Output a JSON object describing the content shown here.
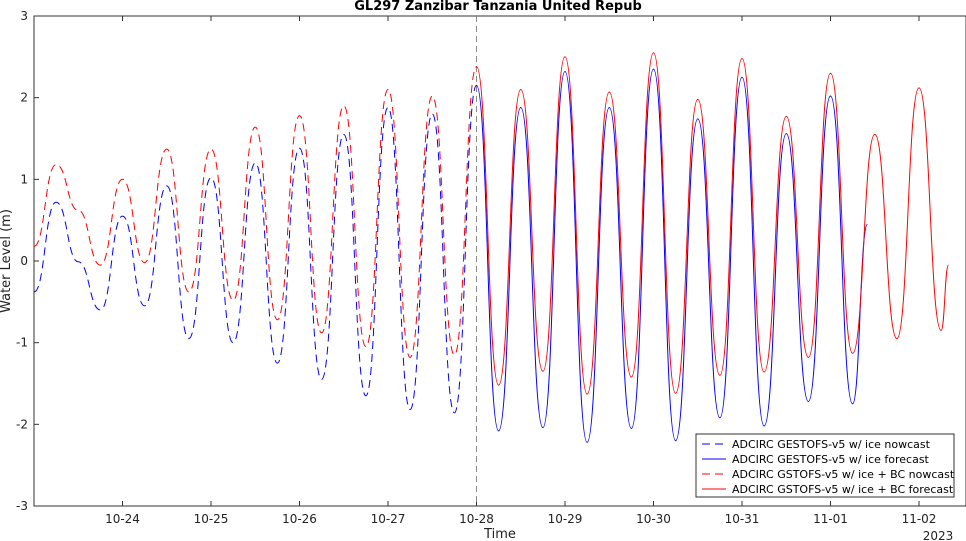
{
  "chart_data": {
    "type": "line",
    "title": "GL297 Zanzibar Tanzania United Repub",
    "xlabel": "Time",
    "ylabel": "Water Level (m)",
    "x_ticks": [
      "10-24",
      "10-25",
      "10-26",
      "10-27",
      "10-28",
      "10-29",
      "10-30",
      "10-31",
      "11-01",
      "11-02"
    ],
    "year_label": "2023",
    "y_ticks": [
      "-3",
      "-2",
      "-1",
      "0",
      "1",
      "2",
      "3"
    ],
    "ylim": [
      -3,
      3
    ],
    "xlim_days": [
      "10-23 00:00",
      "11-02 08:00"
    ],
    "nowcast_forecast_divider": "10-28",
    "grid": false,
    "legend_position": "bottom-right",
    "colors": {
      "ice": "#0000ff",
      "bc": "#ff0000",
      "divider": "#888888"
    },
    "series": [
      {
        "name": "ADCIRC GESTOFS-v5 w/ ice nowcast",
        "color": "#0000ff",
        "style": "dashed",
        "points": [
          [
            "10-23 00:00",
            -0.38
          ],
          [
            "10-23 06:00",
            0.72
          ],
          [
            "10-23 12:00",
            -0.01
          ],
          [
            "10-23 18:00",
            -0.6
          ],
          [
            "10-24 00:00",
            0.55
          ],
          [
            "10-24 06:00",
            -0.55
          ],
          [
            "10-24 12:00",
            0.92
          ],
          [
            "10-24 18:00",
            -0.95
          ],
          [
            "10-25 00:00",
            1.02
          ],
          [
            "10-25 06:00",
            -1.0
          ],
          [
            "10-25 12:00",
            1.2
          ],
          [
            "10-25 18:00",
            -1.25
          ],
          [
            "10-26 00:00",
            1.38
          ],
          [
            "10-26 06:00",
            -1.45
          ],
          [
            "10-26 12:00",
            1.55
          ],
          [
            "10-26 18:00",
            -1.65
          ],
          [
            "10-27 00:00",
            1.88
          ],
          [
            "10-27 06:00",
            -1.82
          ],
          [
            "10-27 12:00",
            1.8
          ],
          [
            "10-27 18:00",
            -1.86
          ],
          [
            "10-28 00:00",
            2.15
          ]
        ]
      },
      {
        "name": "ADCIRC GESTOFS-v5 w/ ice forecast",
        "color": "#0000ff",
        "style": "solid",
        "points": [
          [
            "10-28 00:00",
            2.15
          ],
          [
            "10-28 06:00",
            -2.08
          ],
          [
            "10-28 12:00",
            1.88
          ],
          [
            "10-28 18:00",
            -2.04
          ],
          [
            "10-29 00:00",
            2.32
          ],
          [
            "10-29 06:00",
            -2.22
          ],
          [
            "10-29 12:00",
            1.88
          ],
          [
            "10-29 18:00",
            -2.05
          ],
          [
            "10-30 00:00",
            2.35
          ],
          [
            "10-30 06:00",
            -2.2
          ],
          [
            "10-30 12:00",
            1.74
          ],
          [
            "10-30 18:00",
            -1.92
          ],
          [
            "10-31 00:00",
            2.25
          ],
          [
            "10-31 06:00",
            -2.02
          ],
          [
            "10-31 12:00",
            1.56
          ],
          [
            "10-31 18:00",
            -1.72
          ],
          [
            "11-01 00:00",
            2.02
          ],
          [
            "11-01 06:00",
            -1.75
          ],
          [
            "11-01 10:00",
            0.45
          ]
        ]
      },
      {
        "name": "ADCIRC GSTOFS-v5 w/ ice + BC nowcast",
        "color": "#ff0000",
        "style": "dashed",
        "points": [
          [
            "10-23 00:00",
            0.18
          ],
          [
            "10-23 06:00",
            1.18
          ],
          [
            "10-23 12:00",
            0.62
          ],
          [
            "10-23 18:00",
            -0.05
          ],
          [
            "10-24 00:00",
            1.0
          ],
          [
            "10-24 06:00",
            -0.02
          ],
          [
            "10-24 12:00",
            1.37
          ],
          [
            "10-24 18:00",
            -0.38
          ],
          [
            "10-25 00:00",
            1.37
          ],
          [
            "10-25 06:00",
            -0.48
          ],
          [
            "10-25 12:00",
            1.64
          ],
          [
            "10-25 18:00",
            -0.72
          ],
          [
            "10-26 00:00",
            1.78
          ],
          [
            "10-26 06:00",
            -0.88
          ],
          [
            "10-26 12:00",
            1.9
          ],
          [
            "10-26 18:00",
            -1.05
          ],
          [
            "10-27 00:00",
            2.1
          ],
          [
            "10-27 06:00",
            -1.18
          ],
          [
            "10-27 12:00",
            2.02
          ],
          [
            "10-27 18:00",
            -1.15
          ],
          [
            "10-28 00:00",
            2.38
          ]
        ]
      },
      {
        "name": "ADCIRC GSTOFS-v5 w/ ice + BC forecast",
        "color": "#ff0000",
        "style": "solid",
        "points": [
          [
            "10-28 00:00",
            2.38
          ],
          [
            "10-28 06:00",
            -1.52
          ],
          [
            "10-28 12:00",
            2.1
          ],
          [
            "10-28 18:00",
            -1.35
          ],
          [
            "10-29 00:00",
            2.5
          ],
          [
            "10-29 06:00",
            -1.63
          ],
          [
            "10-29 12:00",
            2.07
          ],
          [
            "10-29 18:00",
            -1.42
          ],
          [
            "10-30 00:00",
            2.55
          ],
          [
            "10-30 06:00",
            -1.62
          ],
          [
            "10-30 12:00",
            1.98
          ],
          [
            "10-30 18:00",
            -1.4
          ],
          [
            "10-31 00:00",
            2.48
          ],
          [
            "10-31 06:00",
            -1.36
          ],
          [
            "10-31 12:00",
            1.77
          ],
          [
            "10-31 18:00",
            -1.18
          ],
          [
            "11-01 00:00",
            2.3
          ],
          [
            "11-01 06:00",
            -1.13
          ],
          [
            "11-01 12:00",
            1.55
          ],
          [
            "11-01 18:00",
            -0.95
          ],
          [
            "11-02 00:00",
            2.12
          ],
          [
            "11-02 06:00",
            -0.85
          ],
          [
            "11-02 08:00",
            -0.05
          ]
        ]
      }
    ]
  }
}
